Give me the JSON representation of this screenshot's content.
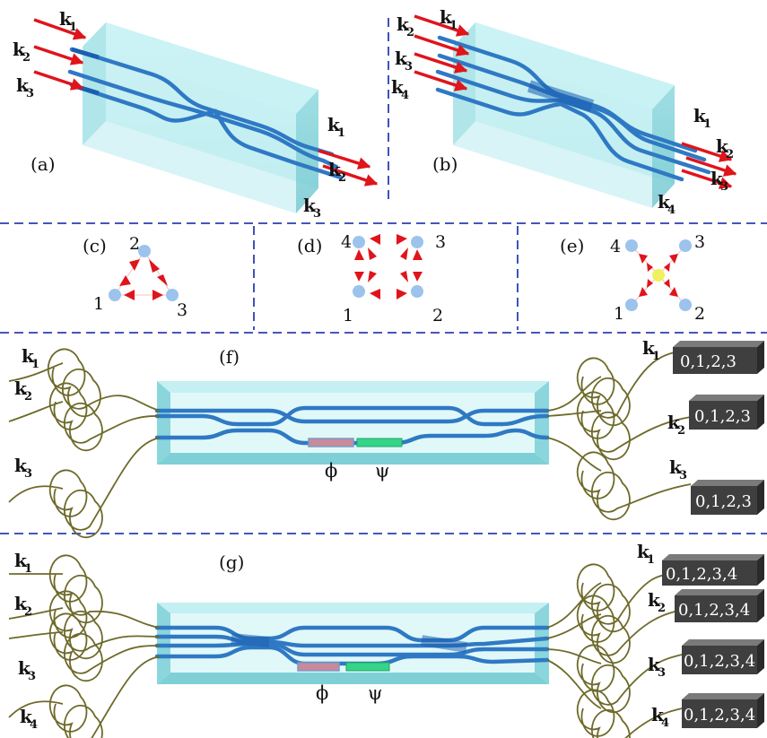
{
  "panels": {
    "a": "(a)",
    "b": "(b)",
    "c": "(c)",
    "d": "(d)",
    "e": "(e)",
    "f": "(f)",
    "g": "(g)"
  },
  "mode_symbol": "k",
  "panel_a": {
    "inputs": [
      {
        "sub": "1"
      },
      {
        "sub": "2"
      },
      {
        "sub": "3"
      }
    ],
    "outputs": [
      {
        "sub": "1"
      },
      {
        "sub": "2"
      },
      {
        "sub": "3"
      }
    ]
  },
  "panel_b": {
    "inputs": [
      {
        "sub": "2"
      },
      {
        "sub": "1"
      },
      {
        "sub": "3"
      },
      {
        "sub": "4"
      }
    ],
    "outputs": [
      {
        "sub": "1"
      },
      {
        "sub": "2"
      },
      {
        "sub": "3"
      },
      {
        "sub": "4"
      }
    ]
  },
  "graph_c": {
    "nodes": [
      "2",
      "1",
      "3"
    ]
  },
  "graph_d": {
    "nodes": [
      "4",
      "3",
      "1",
      "2"
    ]
  },
  "graph_e": {
    "nodes": [
      "4",
      "3",
      "1",
      "2"
    ]
  },
  "panel_f": {
    "inputs": [
      "1",
      "2",
      "3"
    ],
    "outputs": [
      "1",
      "2",
      "3"
    ],
    "phase_labels": [
      "ϕ",
      "ψ"
    ],
    "detector_label": "0,1,2,3"
  },
  "panel_g": {
    "inputs": [
      "1",
      "2",
      "3",
      "4"
    ],
    "outputs": [
      "1",
      "2",
      "3",
      "4"
    ],
    "phase_labels": [
      "ϕ",
      "ψ"
    ],
    "detector_label": "0,1,2,3,4"
  },
  "colors": {
    "waveguide": "#2f79c4",
    "glass": "#a9e6ea",
    "arrow": "#e0141b",
    "node": "#9cc3ec",
    "center_node": "#f0f060",
    "fiber": "#6e6a2a",
    "phase_phi": "#c98a9a",
    "phase_psi": "#35d48a",
    "detector": "#4a4a4a",
    "separator": "#2c3fb0"
  }
}
